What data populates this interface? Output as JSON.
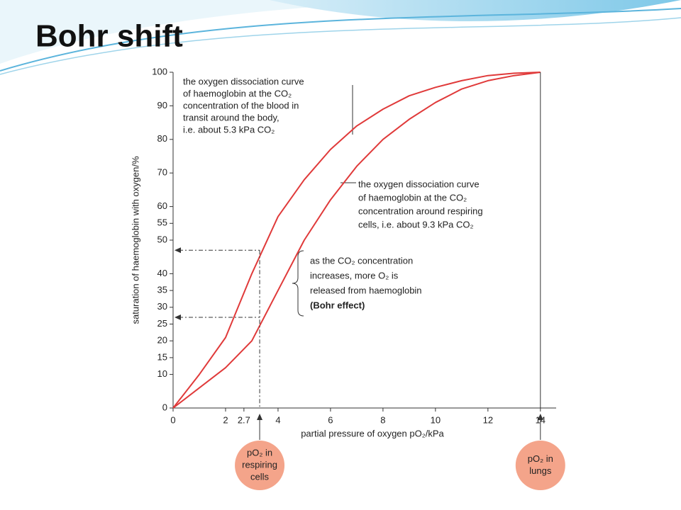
{
  "title": "Bohr shift",
  "chart_data": {
    "type": "line",
    "x_label": "partial pressure of oxygen pO₂/kPa",
    "y_label": "saturation of haemoglobin with oxygen/%",
    "x": [
      0,
      1,
      2,
      3,
      4,
      5,
      6,
      7,
      8,
      9,
      10,
      11,
      12,
      13,
      14
    ],
    "series": [
      {
        "name": "5.3 kPa CO₂",
        "color": "#e03a3a",
        "values": [
          0,
          10,
          21,
          40,
          57,
          68,
          77,
          84,
          89,
          93,
          95.5,
          97.5,
          99,
          99.7,
          100
        ]
      },
      {
        "name": "9.3 kPa CO₂",
        "color": "#e03a3a",
        "values": [
          0,
          6,
          12,
          20,
          35,
          50,
          62,
          72,
          80,
          86,
          91,
          95,
          97.5,
          99,
          100
        ]
      }
    ],
    "xlim": [
      0,
      14.6
    ],
    "ylim": [
      0,
      100
    ],
    "xticks": [
      0,
      2,
      2.7,
      4,
      6,
      8,
      10,
      12,
      14
    ],
    "yticks": [
      0,
      10,
      15,
      20,
      25,
      30,
      35,
      40,
      50,
      55,
      60,
      70,
      80,
      90,
      100
    ],
    "reference_x": [
      3.3,
      14
    ],
    "reference_y": [
      47,
      27
    ],
    "annotations": [
      {
        "lines": [
          "the oxygen dissociation curve",
          "of haemoglobin at the CO₂",
          "concentration of the blood in",
          "transit around the body,",
          "i.e. about 5.3 kPa CO₂"
        ]
      },
      {
        "lines": [
          "the oxygen dissociation curve",
          "of haemoglobin at the CO₂",
          "concentration around respiring",
          "cells, i.e. about 9.3 kPa CO₂"
        ]
      },
      {
        "lines": [
          "as the CO₂ concentration",
          "increases, more O₂ is",
          "released from haemoglobin",
          "(Bohr effect)"
        ]
      }
    ],
    "markers": [
      {
        "lines": [
          "pO₂ in",
          "respiring",
          "cells"
        ]
      },
      {
        "lines": [
          "pO₂ in",
          "lungs"
        ]
      }
    ]
  }
}
